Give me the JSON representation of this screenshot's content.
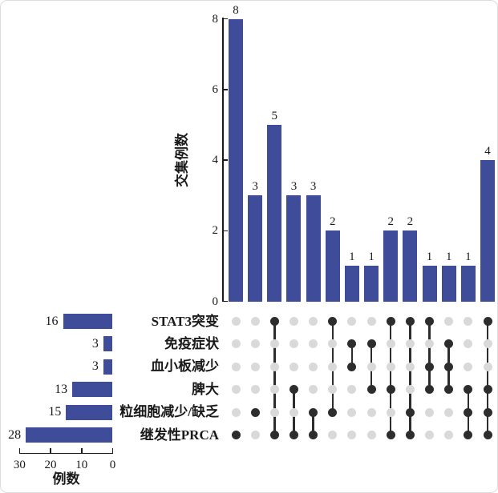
{
  "chart_data": {
    "type": "upset",
    "description": "UpSet plot of intersections among clinical features",
    "sets": [
      {
        "label": "STAT3突变",
        "size": 16
      },
      {
        "label": "免疫症状",
        "size": 3
      },
      {
        "label": "血小板减少",
        "size": 3
      },
      {
        "label": "脾大",
        "size": 13
      },
      {
        "label": "粒细胞减少/缺乏",
        "size": 15
      },
      {
        "label": "继发性PRCA",
        "size": 28
      }
    ],
    "intersections": [
      {
        "size": 8,
        "members": [
          5
        ]
      },
      {
        "size": 3,
        "members": [
          4
        ]
      },
      {
        "size": 5,
        "members": [
          0,
          5
        ]
      },
      {
        "size": 3,
        "members": [
          3,
          5
        ]
      },
      {
        "size": 3,
        "members": [
          4,
          5
        ]
      },
      {
        "size": 2,
        "members": [
          0,
          4
        ]
      },
      {
        "size": 1,
        "members": [
          1,
          2
        ]
      },
      {
        "size": 1,
        "members": [
          1,
          3
        ]
      },
      {
        "size": 2,
        "members": [
          0,
          3,
          5
        ]
      },
      {
        "size": 2,
        "members": [
          0,
          4,
          5
        ]
      },
      {
        "size": 1,
        "members": [
          0,
          2,
          3
        ]
      },
      {
        "size": 1,
        "members": [
          1,
          2,
          3
        ]
      },
      {
        "size": 1,
        "members": [
          3,
          4,
          5
        ]
      },
      {
        "size": 4,
        "members": [
          0,
          3,
          4,
          5
        ]
      }
    ],
    "intersection_axis": {
      "label": "交集例数",
      "ticks": [
        0,
        2,
        4,
        6,
        8
      ],
      "range": [
        0,
        8
      ]
    },
    "set_axis": {
      "label": "例数",
      "ticks": [
        30,
        20,
        10,
        0
      ],
      "range": [
        30,
        0
      ]
    },
    "value_labels_shown": true,
    "legend": "none",
    "grid": false,
    "colors": {
      "bar": "#3e4c9a",
      "dot_active": "#2d2d2d",
      "dot_inactive": "#d9d9d9",
      "axis": "#1a1a1a",
      "background": "#ffffff"
    }
  }
}
